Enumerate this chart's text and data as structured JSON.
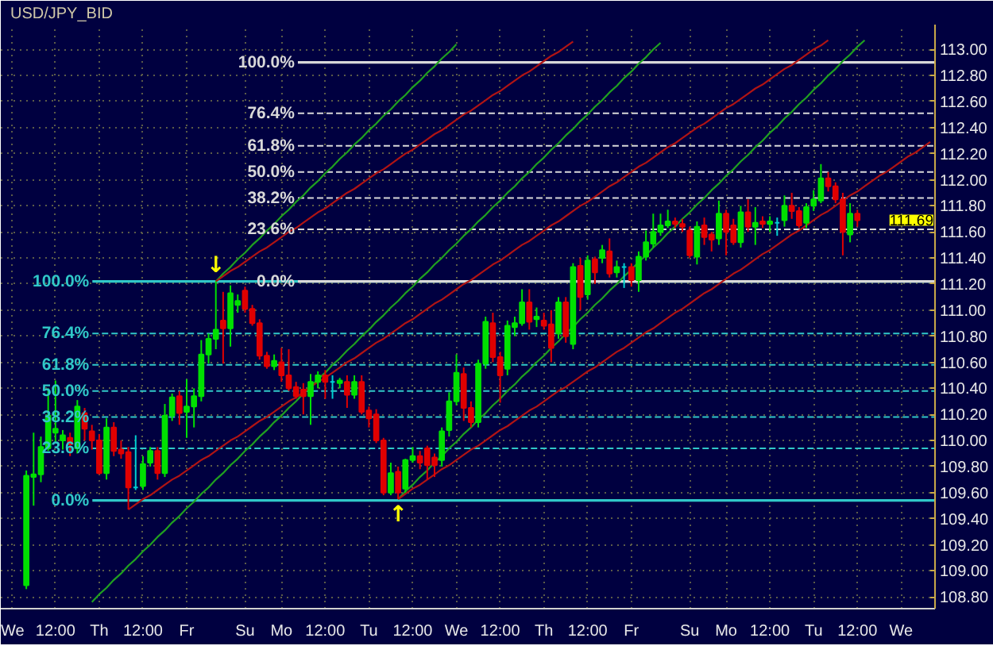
{
  "chart_data": {
    "type": "candlestick",
    "title": "USD/JPY_BID",
    "categories": [
      "We",
      null,
      null,
      null,
      null,
      null,
      "12:00",
      null,
      null,
      null,
      null,
      null,
      "Th",
      null,
      null,
      null,
      null,
      null,
      "12:00",
      null,
      null,
      null,
      null,
      null,
      "Fr",
      null,
      null,
      null,
      null,
      null,
      null,
      null,
      "Su",
      null,
      null,
      null,
      null,
      "Mo",
      null,
      null,
      null,
      null,
      null,
      "12:00",
      null,
      null,
      null,
      null,
      null,
      "Tu",
      null,
      null,
      null,
      null,
      null,
      "12:00",
      null,
      null,
      null,
      null,
      null,
      "We",
      null,
      null,
      null,
      null,
      null,
      "12:00",
      null,
      null,
      null,
      null,
      null,
      "Th",
      null,
      null,
      null,
      null,
      null,
      "12:00",
      null,
      null,
      null,
      null,
      null,
      "Fr",
      null,
      null,
      null,
      null,
      null,
      null,
      null,
      "Su",
      null,
      null,
      null,
      null,
      "Mo",
      null,
      null,
      null,
      null,
      null,
      "12:00",
      null,
      null,
      null,
      null,
      null,
      "Tu",
      null,
      null,
      null,
      null,
      null,
      "12:00",
      null,
      null,
      null,
      null,
      null,
      "We",
      null,
      null,
      null,
      null
    ],
    "ylim": [
      108.71,
      113.19
    ],
    "yticks": [
      {
        "value": 108.8,
        "label": "108.80"
      },
      {
        "value": 109,
        "label": "109.00"
      },
      {
        "value": 109.2,
        "label": "109.20"
      },
      {
        "value": 109.4,
        "label": "109.40"
      },
      {
        "value": 109.6,
        "label": "109.60"
      },
      {
        "value": 109.8,
        "label": "109.80"
      },
      {
        "value": 110,
        "label": "110.00"
      },
      {
        "value": 110.2,
        "label": "110.20"
      },
      {
        "value": 110.4,
        "label": "110.40"
      },
      {
        "value": 110.6,
        "label": "110.60"
      },
      {
        "value": 110.8,
        "label": "110.80"
      },
      {
        "value": 111,
        "label": "111.00"
      },
      {
        "value": 111.2,
        "label": "111.20"
      },
      {
        "value": 111.4,
        "label": "111.40"
      },
      {
        "value": 111.6,
        "label": "111.60"
      },
      {
        "value": 111.8,
        "label": "111.80"
      },
      {
        "value": 112,
        "label": "112.00"
      },
      {
        "value": 112.2,
        "label": "112.20"
      },
      {
        "value": 112.4,
        "label": "112.40"
      },
      {
        "value": 112.6,
        "label": "112.60"
      },
      {
        "value": 112.8,
        "label": "112.80"
      },
      {
        "value": 113,
        "label": "113.00"
      }
    ],
    "grid": true,
    "ohlc": [
      null,
      null,
      [
        108.89,
        109.77,
        108.86,
        109.73
      ],
      [
        109.72,
        110.06,
        109.5,
        109.74
      ],
      [
        109.74,
        110.03,
        109.68,
        109.95
      ],
      [
        109.94,
        110.4,
        109.92,
        110.19
      ],
      [
        110.06,
        110.46,
        109.99,
        110.09
      ],
      [
        110.0,
        110.08,
        109.93,
        110.04
      ],
      [
        110.02,
        110.06,
        109.88,
        109.97
      ],
      [
        109.94,
        110.31,
        109.9,
        110.26
      ],
      [
        110.21,
        110.25,
        110.0,
        110.09
      ],
      [
        110.07,
        110.12,
        109.93,
        110.0
      ],
      [
        110.0,
        110.05,
        109.74,
        109.75
      ],
      [
        109.75,
        110.17,
        109.7,
        110.1
      ],
      [
        110.1,
        110.14,
        109.88,
        109.92
      ],
      [
        109.93,
        110.0,
        109.86,
        109.9
      ],
      [
        109.91,
        109.95,
        109.47,
        109.64
      ],
      [
        109.64,
        110.04,
        109.62,
        109.64
      ],
      [
        109.65,
        109.88,
        109.62,
        109.82
      ],
      [
        109.83,
        109.95,
        109.8,
        109.92
      ],
      [
        109.92,
        109.95,
        109.7,
        109.75
      ],
      [
        109.75,
        110.28,
        109.72,
        110.19
      ],
      [
        110.19,
        110.36,
        110.15,
        110.33
      ],
      [
        110.34,
        110.38,
        110.12,
        110.21
      ],
      [
        110.22,
        110.47,
        110.02,
        110.26
      ],
      [
        110.26,
        110.4,
        110.1,
        110.34
      ],
      [
        110.34,
        110.77,
        110.3,
        110.66
      ],
      [
        110.66,
        110.82,
        110.59,
        110.78
      ],
      [
        110.78,
        111.22,
        110.7,
        110.85
      ],
      [
        110.92,
        111.14,
        110.59,
        110.86
      ],
      [
        110.86,
        111.19,
        110.72,
        111.13
      ],
      [
        111.04,
        111.12,
        110.98,
        111.07
      ],
      [
        111.15,
        111.18,
        110.98,
        111.01
      ],
      [
        111.01,
        111.04,
        110.88,
        110.9
      ],
      [
        110.9,
        110.93,
        110.62,
        110.65
      ],
      [
        110.65,
        110.68,
        110.55,
        110.57
      ],
      [
        110.57,
        110.66,
        110.54,
        110.61
      ],
      [
        110.6,
        110.71,
        110.45,
        110.5
      ],
      [
        110.5,
        110.7,
        110.38,
        110.4
      ],
      [
        110.41,
        110.45,
        110.32,
        110.34
      ],
      [
        110.39,
        110.44,
        110.2,
        110.34
      ],
      [
        110.34,
        110.51,
        110.12,
        110.45
      ],
      [
        110.45,
        110.53,
        110.4,
        110.5
      ],
      [
        110.5,
        110.54,
        110.32,
        110.45
      ],
      [
        110.45,
        110.5,
        110.32,
        110.45
      ],
      [
        110.44,
        110.48,
        110.4,
        110.46
      ],
      [
        110.45,
        110.5,
        110.25,
        110.35
      ],
      [
        110.35,
        110.5,
        110.32,
        110.45
      ],
      [
        110.45,
        110.5,
        110.2,
        110.22
      ],
      [
        110.23,
        110.26,
        110.1,
        110.17
      ],
      [
        110.2,
        110.24,
        109.98,
        110.0
      ],
      [
        110.0,
        110.02,
        109.58,
        109.6
      ],
      [
        109.6,
        109.83,
        109.58,
        109.75
      ],
      [
        109.76,
        109.8,
        109.55,
        109.6
      ],
      [
        109.63,
        109.86,
        109.6,
        109.85
      ],
      [
        109.85,
        109.95,
        109.83,
        109.88
      ],
      [
        109.88,
        109.92,
        109.78,
        109.83
      ],
      [
        109.94,
        109.96,
        109.7,
        109.81
      ],
      [
        109.87,
        109.9,
        109.72,
        109.81
      ],
      [
        109.85,
        110.1,
        109.8,
        110.07
      ],
      [
        110.08,
        110.37,
        110.03,
        110.3
      ],
      [
        110.3,
        110.66,
        110.27,
        110.52
      ],
      [
        110.51,
        110.56,
        110.15,
        110.25
      ],
      [
        110.25,
        110.3,
        110.1,
        110.14
      ],
      [
        110.14,
        110.62,
        110.1,
        110.59
      ],
      [
        110.59,
        110.95,
        110.55,
        110.91
      ],
      [
        110.9,
        110.98,
        110.6,
        110.64
      ],
      [
        110.64,
        110.68,
        110.29,
        110.5
      ],
      [
        110.55,
        110.92,
        110.5,
        110.88
      ],
      [
        110.87,
        110.95,
        110.8,
        110.9
      ],
      [
        110.9,
        111.16,
        110.88,
        111.06
      ],
      [
        111.06,
        111.16,
        110.85,
        110.91
      ],
      [
        110.93,
        111.02,
        110.87,
        110.95
      ],
      [
        110.92,
        110.98,
        110.85,
        110.88
      ],
      [
        110.89,
        111.0,
        110.6,
        110.71
      ],
      [
        110.82,
        111.1,
        110.78,
        111.06
      ],
      [
        111.06,
        111.1,
        110.75,
        110.8
      ],
      [
        110.74,
        111.36,
        110.7,
        111.33
      ],
      [
        111.34,
        111.4,
        111.0,
        111.1
      ],
      [
        111.12,
        111.42,
        111.08,
        111.38
      ],
      [
        111.39,
        111.41,
        111.2,
        111.29
      ],
      [
        111.4,
        111.5,
        111.36,
        111.46
      ],
      [
        111.45,
        111.55,
        111.25,
        111.28
      ],
      [
        111.29,
        111.38,
        111.25,
        111.33
      ],
      [
        111.33,
        111.36,
        111.17,
        111.33
      ],
      [
        111.33,
        111.36,
        111.18,
        111.23
      ],
      [
        111.23,
        111.45,
        111.14,
        111.41
      ],
      [
        111.41,
        111.61,
        111.38,
        111.52
      ],
      [
        111.51,
        111.74,
        111.48,
        111.6
      ],
      [
        111.6,
        111.74,
        111.57,
        111.65
      ],
      [
        111.65,
        111.77,
        111.63,
        111.68
      ],
      [
        111.68,
        111.71,
        111.63,
        111.66
      ],
      [
        111.66,
        111.7,
        111.6,
        111.64
      ],
      [
        111.61,
        111.64,
        111.4,
        111.42
      ],
      [
        111.41,
        111.68,
        111.35,
        111.64
      ],
      [
        111.65,
        111.71,
        111.5,
        111.56
      ],
      [
        111.58,
        111.6,
        111.45,
        111.54
      ],
      [
        111.55,
        111.84,
        111.5,
        111.74
      ],
      [
        111.74,
        111.77,
        111.42,
        111.6
      ],
      [
        111.65,
        111.7,
        111.5,
        111.52
      ],
      [
        111.52,
        111.8,
        111.48,
        111.75
      ],
      [
        111.75,
        111.85,
        111.6,
        111.64
      ],
      [
        111.64,
        111.79,
        111.5,
        111.67
      ],
      [
        111.68,
        111.72,
        111.63,
        111.66
      ],
      [
        111.66,
        111.72,
        111.6,
        111.68
      ],
      [
        111.67,
        111.71,
        111.57,
        111.67
      ],
      [
        111.69,
        111.88,
        111.64,
        111.8
      ],
      [
        111.8,
        111.9,
        111.7,
        111.76
      ],
      [
        111.76,
        111.79,
        111.63,
        111.65
      ],
      [
        111.67,
        111.82,
        111.63,
        111.79
      ],
      [
        111.8,
        111.92,
        111.76,
        111.85
      ],
      [
        111.84,
        112.12,
        111.82,
        112.01
      ],
      [
        112.01,
        112.06,
        111.91,
        111.95
      ],
      [
        111.95,
        111.98,
        111.82,
        111.85
      ],
      [
        111.85,
        111.9,
        111.42,
        111.6
      ],
      [
        111.58,
        111.82,
        111.52,
        111.74
      ],
      [
        111.74,
        111.77,
        111.64,
        111.69
      ],
      null,
      null,
      null,
      null,
      null,
      null,
      null,
      null,
      null,
      null
    ],
    "colors": [
      null,
      null,
      "#00e000",
      "#00e000",
      "#00e000",
      "#00e000",
      "#00e000",
      "#00e000",
      "#e00000",
      "#00e000",
      "#e00000",
      "#e00000",
      "#e00000",
      "#00e000",
      "#e00000",
      "#e00000",
      "#e00000",
      "#00d0d0",
      "#00e000",
      "#00e000",
      "#e00000",
      "#00e000",
      "#00e000",
      "#e00000",
      "#00e000",
      "#00e000",
      "#00e000",
      "#00e000",
      "#00e000",
      "#e00000",
      "#00e000",
      "#00e000",
      "#e00000",
      "#e00000",
      "#e00000",
      "#e00000",
      "#00e000",
      "#e00000",
      "#e00000",
      "#e00000",
      "#e00000",
      "#00e000",
      "#00e000",
      "#e00000",
      "#00d0d0",
      "#00e000",
      "#e00000",
      "#00e000",
      "#e00000",
      "#e00000",
      "#e00000",
      "#e00000",
      "#00e000",
      "#e00000",
      "#00e000",
      "#00e000",
      "#e00000",
      "#e00000",
      "#e00000",
      "#00e000",
      "#00e000",
      "#00e000",
      "#e00000",
      "#e00000",
      "#00e000",
      "#00e000",
      "#e00000",
      "#e00000",
      "#00e000",
      "#00e000",
      "#00e000",
      "#e00000",
      "#00e000",
      "#e00000",
      "#e00000",
      "#00e000",
      "#e00000",
      "#00e000",
      "#e00000",
      "#00e000",
      "#e00000",
      "#00e000",
      "#e00000",
      "#00e000",
      "#00d0d0",
      "#e00000",
      "#00e000",
      "#00e000",
      "#00e000",
      "#00e000",
      "#00e000",
      "#e00000",
      "#e00000",
      "#e00000",
      "#00e000",
      "#e00000",
      "#e00000",
      "#00e000",
      "#e00000",
      "#e00000",
      "#00e000",
      "#e00000",
      "#00e000",
      "#e00000",
      "#00e000",
      "#00d0d0",
      "#00e000",
      "#e00000",
      "#e00000",
      "#00e000",
      "#00e000",
      "#00e000",
      "#e00000",
      "#e00000",
      "#e00000",
      "#00e000",
      "#e00000",
      null,
      null,
      null,
      null,
      null,
      null,
      null,
      null,
      null,
      null
    ],
    "series": [
      {
        "type": "line",
        "color": "#20a020",
        "values": [
          null,
          null,
          null,
          null,
          null,
          null,
          null,
          null,
          null,
          null,
          null,
          null,
          null,
          null,
          null,
          null,
          null,
          null,
          null,
          null,
          null,
          null,
          null,
          null,
          null,
          null,
          null,
          null,
          111.22,
          111.28,
          111.33,
          111.39,
          111.44,
          111.5,
          111.55,
          111.61,
          111.66,
          111.72,
          111.77,
          111.83,
          111.88,
          111.94,
          111.99,
          112.05,
          112.1,
          112.16,
          112.21,
          112.27,
          112.32,
          112.38,
          112.43,
          112.49,
          112.54,
          112.6,
          112.65,
          112.71,
          112.76,
          112.82,
          112.87,
          112.93,
          112.98,
          113.04,
          null,
          null,
          null,
          null,
          null,
          null,
          null,
          null,
          null,
          null,
          null,
          null,
          null,
          null,
          null,
          null,
          null,
          null,
          null,
          null,
          null,
          null,
          null,
          null,
          null,
          null,
          null,
          null,
          null,
          null,
          null,
          null,
          null,
          null,
          null,
          null,
          null,
          null,
          null,
          null,
          null,
          null,
          null,
          null,
          null,
          null,
          null,
          null,
          null,
          null,
          null,
          null,
          null,
          null,
          null,
          null,
          null,
          null,
          null,
          null,
          null,
          null,
          null,
          null,
          null
        ]
      },
      {
        "type": "line",
        "color": "#20a020",
        "values": [
          null,
          null,
          null,
          null,
          null,
          null,
          null,
          null,
          null,
          null,
          null,
          108.76,
          108.82,
          108.87,
          108.93,
          108.98,
          109.04,
          109.09,
          109.15,
          109.2,
          109.26,
          109.31,
          109.37,
          109.42,
          109.48,
          109.53,
          109.59,
          109.64,
          109.7,
          109.75,
          109.81,
          109.86,
          109.92,
          109.97,
          110.03,
          110.08,
          110.14,
          110.19,
          110.25,
          110.3,
          110.36,
          110.41,
          110.47,
          110.52,
          110.58,
          110.63,
          110.69,
          110.74,
          110.8,
          110.85,
          110.91,
          110.96,
          111.02,
          111.07,
          111.13,
          111.18,
          111.24,
          111.29,
          111.35,
          111.4,
          111.46,
          111.51,
          111.57,
          111.62,
          111.68,
          111.73,
          111.79,
          111.84,
          111.9,
          111.95,
          112.01,
          112.06,
          112.12,
          112.17,
          112.23,
          112.28,
          112.34,
          112.39,
          112.45,
          112.5,
          112.56,
          112.61,
          112.67,
          112.72,
          112.78,
          112.83,
          112.89,
          112.94,
          113.0,
          113.05,
          null,
          null,
          null,
          null,
          null,
          null,
          null,
          null,
          null,
          null,
          null,
          null,
          null,
          null,
          null,
          null,
          null,
          null,
          null,
          null,
          null,
          null,
          null,
          null,
          null,
          null,
          null,
          null,
          null,
          null,
          null,
          null,
          null,
          null,
          null,
          null,
          null
        ]
      },
      {
        "type": "line",
        "color": "#20a020",
        "values": [
          null,
          null,
          null,
          null,
          null,
          null,
          null,
          null,
          null,
          null,
          null,
          null,
          null,
          null,
          null,
          null,
          null,
          null,
          null,
          null,
          null,
          null,
          null,
          null,
          null,
          null,
          null,
          null,
          null,
          null,
          null,
          null,
          null,
          null,
          null,
          null,
          null,
          null,
          null,
          null,
          null,
          null,
          null,
          null,
          null,
          null,
          null,
          null,
          null,
          null,
          null,
          null,
          null,
          109.55,
          109.61,
          109.66,
          109.72,
          109.77,
          109.83,
          109.88,
          109.94,
          109.99,
          110.05,
          110.1,
          110.16,
          110.21,
          110.27,
          110.32,
          110.38,
          110.43,
          110.49,
          110.54,
          110.6,
          110.65,
          110.71,
          110.76,
          110.82,
          110.87,
          110.93,
          110.98,
          111.04,
          111.09,
          111.15,
          111.2,
          111.26,
          111.31,
          111.37,
          111.42,
          111.48,
          111.53,
          111.59,
          111.64,
          111.7,
          111.75,
          111.81,
          111.86,
          111.92,
          111.97,
          112.03,
          112.08,
          112.14,
          112.19,
          112.25,
          112.3,
          112.36,
          112.41,
          112.47,
          112.52,
          112.58,
          112.63,
          112.69,
          112.74,
          112.8,
          112.85,
          112.91,
          112.96,
          113.02,
          113.07,
          null,
          null,
          null,
          null,
          null,
          null,
          null,
          null,
          null
        ]
      },
      {
        "type": "line",
        "color": "#b01414",
        "values": [
          null,
          null,
          null,
          null,
          null,
          null,
          null,
          null,
          null,
          null,
          null,
          null,
          null,
          null,
          null,
          null,
          null,
          null,
          null,
          null,
          null,
          null,
          null,
          null,
          null,
          null,
          null,
          null,
          111.22,
          111.26,
          111.3,
          111.33,
          111.37,
          111.41,
          111.45,
          111.48,
          111.52,
          111.56,
          111.6,
          111.63,
          111.67,
          111.71,
          111.75,
          111.78,
          111.82,
          111.86,
          111.9,
          111.93,
          111.97,
          112.01,
          112.05,
          112.08,
          112.12,
          112.16,
          112.2,
          112.23,
          112.27,
          112.31,
          112.35,
          112.38,
          112.42,
          112.46,
          112.5,
          112.53,
          112.57,
          112.61,
          112.65,
          112.68,
          112.72,
          112.76,
          112.8,
          112.83,
          112.87,
          112.91,
          112.95,
          112.98,
          113.02,
          113.06,
          null,
          null,
          null,
          null,
          null,
          null,
          null,
          null,
          null,
          null,
          null,
          null,
          null,
          null,
          null,
          null,
          null,
          null,
          null,
          null,
          null,
          null,
          null,
          null,
          null,
          null,
          null,
          null,
          null,
          null,
          null,
          null,
          null,
          null,
          null,
          null,
          null,
          null,
          null,
          null,
          null,
          null,
          null,
          null,
          null,
          null,
          null,
          null,
          null
        ]
      },
      {
        "type": "line",
        "color": "#b01414",
        "values": [
          null,
          null,
          null,
          null,
          null,
          null,
          null,
          null,
          null,
          null,
          null,
          null,
          null,
          null,
          null,
          null,
          109.47,
          109.51,
          109.55,
          109.58,
          109.62,
          109.66,
          109.7,
          109.73,
          109.77,
          109.81,
          109.85,
          109.88,
          109.92,
          109.96,
          110.0,
          110.03,
          110.07,
          110.11,
          110.15,
          110.18,
          110.22,
          110.26,
          110.3,
          110.33,
          110.37,
          110.41,
          110.45,
          110.48,
          110.52,
          110.56,
          110.6,
          110.63,
          110.67,
          110.71,
          110.75,
          110.78,
          110.82,
          110.86,
          110.9,
          110.93,
          110.97,
          111.01,
          111.05,
          111.08,
          111.12,
          111.16,
          111.2,
          111.23,
          111.27,
          111.31,
          111.35,
          111.38,
          111.42,
          111.46,
          111.5,
          111.53,
          111.57,
          111.61,
          111.65,
          111.68,
          111.72,
          111.76,
          111.8,
          111.83,
          111.87,
          111.91,
          111.95,
          111.98,
          112.02,
          112.06,
          112.1,
          112.13,
          112.17,
          112.21,
          112.25,
          112.28,
          112.32,
          112.36,
          112.4,
          112.43,
          112.47,
          112.51,
          112.55,
          112.58,
          112.62,
          112.66,
          112.7,
          112.73,
          112.77,
          112.81,
          112.85,
          112.88,
          112.92,
          112.96,
          113.0,
          113.03,
          113.07,
          null,
          null,
          null,
          null,
          null,
          null,
          null,
          null,
          null,
          null,
          null,
          null,
          null,
          null
        ]
      },
      {
        "type": "line",
        "color": "#b01414",
        "values": [
          null,
          null,
          null,
          null,
          null,
          null,
          null,
          null,
          null,
          null,
          null,
          null,
          null,
          null,
          null,
          null,
          null,
          null,
          null,
          null,
          null,
          null,
          null,
          null,
          null,
          null,
          null,
          null,
          null,
          null,
          null,
          null,
          null,
          null,
          null,
          null,
          null,
          null,
          null,
          null,
          null,
          null,
          null,
          null,
          null,
          null,
          null,
          null,
          null,
          null,
          null,
          null,
          null,
          109.55,
          109.59,
          109.63,
          109.66,
          109.7,
          109.74,
          109.78,
          109.81,
          109.85,
          109.89,
          109.93,
          109.96,
          110.0,
          110.04,
          110.08,
          110.11,
          110.15,
          110.19,
          110.23,
          110.26,
          110.3,
          110.34,
          110.38,
          110.41,
          110.45,
          110.49,
          110.53,
          110.56,
          110.6,
          110.64,
          110.68,
          110.71,
          110.75,
          110.79,
          110.83,
          110.86,
          110.9,
          110.94,
          110.98,
          111.01,
          111.05,
          111.09,
          111.13,
          111.16,
          111.2,
          111.24,
          111.28,
          111.31,
          111.35,
          111.39,
          111.43,
          111.46,
          111.5,
          111.54,
          111.58,
          111.61,
          111.65,
          111.69,
          111.73,
          111.76,
          111.8,
          111.84,
          111.88,
          111.91,
          111.95,
          111.99,
          112.03,
          112.06,
          112.1,
          112.14,
          112.18,
          112.21,
          112.25,
          112.29
        ]
      }
    ],
    "ref_lines": [
      {
        "axis": "y",
        "value": 111.22,
        "color": "#30c8c8",
        "line_style": "solid"
      },
      {
        "axis": "y",
        "value": 110.82,
        "color": "#30c8c8",
        "line_style": "dashed"
      },
      {
        "axis": "y",
        "value": 110.58,
        "color": "#30c8c8",
        "line_style": "dashed"
      },
      {
        "axis": "y",
        "value": 110.38,
        "color": "#30c8c8",
        "line_style": "dashed"
      },
      {
        "axis": "y",
        "value": 110.18,
        "color": "#30c8c8",
        "line_style": "dashed"
      },
      {
        "axis": "y",
        "value": 109.94,
        "color": "#30c8c8",
        "line_style": "dashed"
      },
      {
        "axis": "y",
        "value": 109.54,
        "color": "#30c8c8",
        "line_style": "solid"
      },
      {
        "axis": "y",
        "value": 112.9,
        "color": "#d8d8d8",
        "line_style": "solid"
      },
      {
        "axis": "y",
        "value": 112.51,
        "color": "#d8d8d8",
        "line_style": "dashed"
      },
      {
        "axis": "y",
        "value": 112.26,
        "color": "#d8d8d8",
        "line_style": "dashed"
      },
      {
        "axis": "y",
        "value": 112.06,
        "color": "#d8d8d8",
        "line_style": "dashed"
      },
      {
        "axis": "y",
        "value": 111.86,
        "color": "#d8d8d8",
        "line_style": "dashed"
      },
      {
        "axis": "y",
        "value": 111.62,
        "color": "#d8d8d8",
        "line_style": "dashed"
      },
      {
        "axis": "y",
        "value": 111.22,
        "color": "#d8d8d8",
        "line_style": "solid"
      }
    ],
    "annotations": [
      "100.0%",
      "76.4%",
      "61.8%",
      "50.0%",
      "38.2%",
      "23.6%",
      "0.0%",
      "100.0%",
      "76.4%",
      "61.8%",
      "50.0%",
      "38.2%",
      "23.6%",
      "0.0%",
      "111.69",
      {
        "text": "↓",
        "y": 111.22
      },
      {
        "text": "↑",
        "y": 109.55
      }
    ]
  }
}
